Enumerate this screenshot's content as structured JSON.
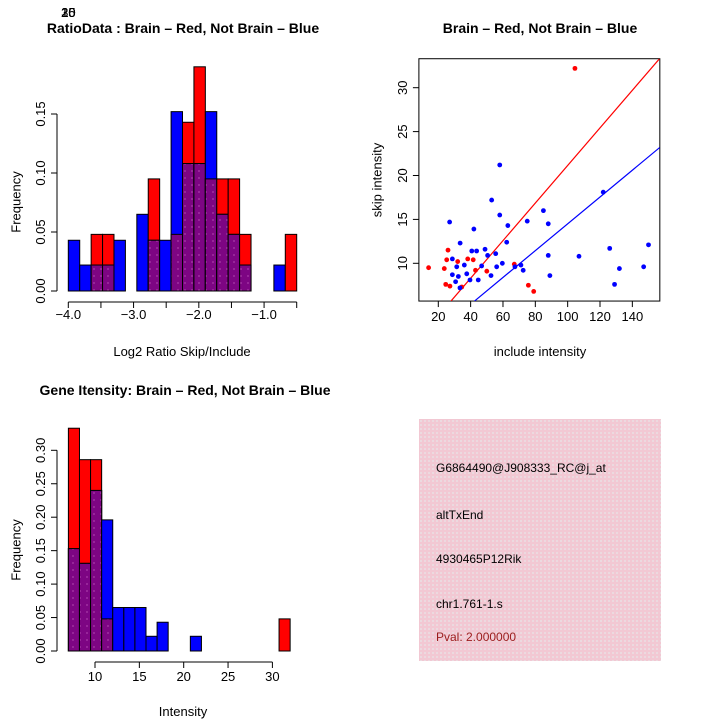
{
  "figure": {
    "background_color": "#FFFFFF",
    "accent_red": "#FF0000",
    "accent_blue": "#0000FF",
    "overlap_purple": "#7D0583",
    "info_pink": "#F2C8D3",
    "pval_red": "#9B1C1C"
  },
  "chart_data": [
    {
      "type": "bar",
      "subtype": "overlaid-histogram",
      "panel": "top-left",
      "title": "RatioData : Brain – Red, Not Brain – Blue",
      "xlabel": "Log2 Ratio Skip/Include",
      "ylabel": "Frequency",
      "bin_start": -4.0,
      "bin_width": 0.175,
      "x_ticks": [
        -4.0,
        -3.5,
        -3.0,
        -2.5,
        -2.0,
        -1.5,
        -1.0,
        -0.5
      ],
      "x_tick_labels": [
        "-4.0",
        "",
        "-3.0",
        "",
        "-2.0",
        "",
        "-1.0",
        ""
      ],
      "y_ticks": [
        0.0,
        0.05,
        0.1,
        0.15
      ],
      "ylim": [
        0,
        0.19
      ],
      "grid": false,
      "series": [
        {
          "name": "Not Brain (blue)",
          "color": "#0000FF",
          "freq": [
            0.043,
            0.022,
            0.022,
            0.022,
            0.043,
            0,
            0.065,
            0.043,
            0.043,
            0.152,
            0.108,
            0.108,
            0.152,
            0.065,
            0.048,
            0.022,
            0,
            0,
            0.022,
            0
          ]
        },
        {
          "name": "Brain (red)",
          "color": "#FF0000",
          "freq": [
            0,
            0,
            0.048,
            0.048,
            0,
            0,
            0,
            0.095,
            0,
            0.048,
            0.143,
            0.19,
            0.095,
            0.095,
            0.095,
            0.048,
            0,
            0,
            0,
            0.048
          ]
        }
      ],
      "overlap_color": "#7D0583"
    },
    {
      "type": "scatter",
      "panel": "top-right",
      "title": "Brain – Red, Not Brain – Blue",
      "xlabel": "include intensity",
      "ylabel": "skip intensity",
      "x_ticks": [
        20,
        40,
        60,
        80,
        100,
        120,
        140
      ],
      "y_ticks": [
        10,
        15,
        20,
        25,
        30
      ],
      "xlim": [
        8,
        157
      ],
      "ylim": [
        5.7,
        33.3
      ],
      "grid": false,
      "series": [
        {
          "name": "Brain (red)",
          "color": "#FF0000",
          "points": [
            [
              104.5,
              32.2
            ],
            [
              14,
              9.5
            ],
            [
              23.7,
              9.4
            ],
            [
              24.6,
              7.6
            ],
            [
              25.2,
              10.4
            ],
            [
              26,
              11.5
            ],
            [
              27.2,
              7.4
            ],
            [
              32,
              10.2
            ],
            [
              34.5,
              7.3
            ],
            [
              38.2,
              10.5
            ],
            [
              41.6,
              10.4
            ],
            [
              43,
              9.2
            ],
            [
              50,
              9.1
            ],
            [
              67,
              9.9
            ],
            [
              75.7,
              7.5
            ],
            [
              79,
              6.8
            ]
          ]
        },
        {
          "name": "Not Brain (blue)",
          "color": "#0000FF",
          "points": [
            [
              27,
              14.7
            ],
            [
              28.7,
              10.5
            ],
            [
              28.7,
              8.7
            ],
            [
              30.7,
              7.9
            ],
            [
              31.4,
              9.6
            ],
            [
              32.4,
              8.5
            ],
            [
              33.5,
              12.3
            ],
            [
              33.4,
              7.2
            ],
            [
              36.1,
              9.8
            ],
            [
              37.6,
              8.8
            ],
            [
              39.6,
              8.1
            ],
            [
              40.7,
              11.4
            ],
            [
              42,
              13.9
            ],
            [
              43.7,
              11.4
            ],
            [
              44.7,
              8.1
            ],
            [
              46.8,
              9.7
            ],
            [
              48.9,
              11.6
            ],
            [
              50.5,
              10.9
            ],
            [
              52.6,
              8.6
            ],
            [
              53,
              17.2
            ],
            [
              55.5,
              11.1
            ],
            [
              56.1,
              9.6
            ],
            [
              58,
              21.2
            ],
            [
              58,
              15.5
            ],
            [
              59.6,
              10
            ],
            [
              62.3,
              12.4
            ],
            [
              63,
              14.3
            ],
            [
              67.4,
              9.6
            ],
            [
              71.1,
              9.8
            ],
            [
              72.5,
              9.2
            ],
            [
              75,
              14.8
            ],
            [
              85,
              16
            ],
            [
              88,
              14.5
            ],
            [
              88,
              10.9
            ],
            [
              89,
              8.6
            ],
            [
              107,
              10.8
            ],
            [
              122,
              18.1
            ],
            [
              126,
              11.7
            ],
            [
              129,
              7.6
            ],
            [
              132,
              9.4
            ],
            [
              147,
              9.6
            ],
            [
              150,
              12.1
            ]
          ]
        }
      ],
      "fit_lines": [
        {
          "name": "brain-fit",
          "color": "#FF0000",
          "x1": 27.85,
          "y1": 5.7,
          "x2": 156.8,
          "y2": 33.3
        },
        {
          "name": "not-brain-fit",
          "color": "#0000FF",
          "x1": 42.4,
          "y1": 5.7,
          "x2": 157,
          "y2": 23.2
        }
      ]
    },
    {
      "type": "bar",
      "subtype": "overlaid-histogram",
      "panel": "bottom-left",
      "title": "Gene Itensity: Brain – Red, Not Brain – Blue",
      "xlabel": "Intensity",
      "ylabel": "Frequency",
      "bin_start": 7.0,
      "bin_width": 1.25,
      "x_ticks": [
        10,
        15,
        20,
        25,
        30
      ],
      "x_tick_labels": [
        "10",
        "15",
        "20",
        "25",
        "30"
      ],
      "y_ticks": [
        0.0,
        0.05,
        0.1,
        0.15,
        0.2,
        0.25,
        0.3
      ],
      "ylim": [
        0,
        0.335
      ],
      "grid": false,
      "series": [
        {
          "name": "Not Brain (blue)",
          "color": "#0000FF",
          "freq": [
            0.153,
            0.131,
            0.24,
            0.196,
            0.065,
            0.065,
            0.065,
            0.022,
            0.043,
            0,
            0,
            0.022,
            0,
            0,
            0,
            0,
            0,
            0,
            0,
            0
          ]
        },
        {
          "name": "Brain (red)",
          "color": "#FF0000",
          "freq": [
            0.333,
            0.286,
            0.286,
            0.048,
            0,
            0,
            0,
            0,
            0,
            0,
            0,
            0,
            0,
            0,
            0,
            0,
            0,
            0,
            0,
            0.048
          ]
        }
      ],
      "overlap_color": "#7D0583"
    }
  ],
  "info_panel": {
    "background_color": "#F2C8D3",
    "lines": [
      {
        "text": "G6864490@J908333_RC@j_at",
        "color": "#000000"
      },
      {
        "text": "altTxEnd",
        "color": "#000000"
      },
      {
        "text": "4930465P12Rik",
        "color": "#000000"
      },
      {
        "text": "chr1.761-1.s",
        "color": "#000000"
      },
      {
        "text": "Pval: 2.000000",
        "color": "#9B1C1C"
      }
    ]
  }
}
